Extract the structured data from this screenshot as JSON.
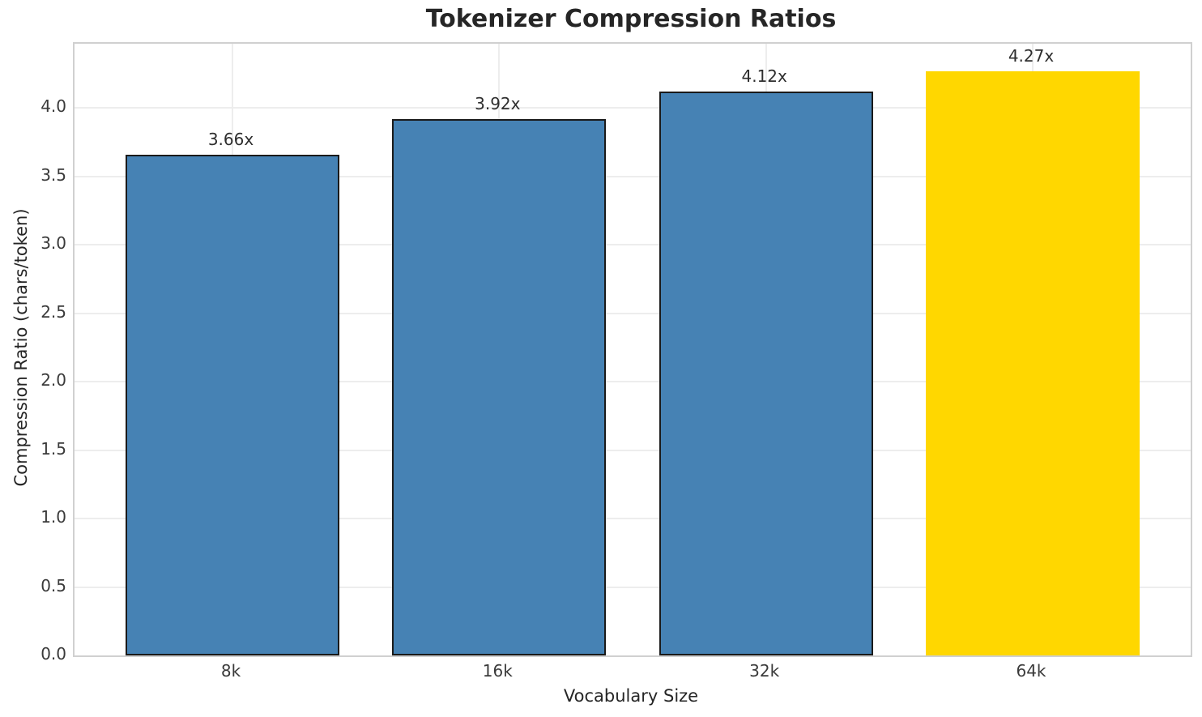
{
  "chart_data": {
    "type": "bar",
    "title": "Tokenizer Compression Ratios",
    "xlabel": "Vocabulary Size",
    "ylabel": "Compression Ratio (chars/token)",
    "categories": [
      "8k",
      "16k",
      "32k",
      "64k"
    ],
    "values": [
      3.66,
      3.92,
      4.12,
      4.27
    ],
    "bar_labels": [
      "3.66x",
      "3.92x",
      "4.12x",
      "4.27x"
    ],
    "bar_colors": [
      "#4682B4",
      "#4682B4",
      "#4682B4",
      "#FFD700"
    ],
    "bar_edge_colors": [
      "#1a1a1a",
      "#1a1a1a",
      "#1a1a1a",
      "none"
    ],
    "ylim": [
      0,
      4.47
    ],
    "yticks": [
      0.0,
      0.5,
      1.0,
      1.5,
      2.0,
      2.5,
      3.0,
      3.5,
      4.0
    ],
    "ytick_labels": [
      "0.0",
      "0.5",
      "1.0",
      "1.5",
      "2.0",
      "2.5",
      "3.0",
      "3.5",
      "4.0"
    ],
    "grid": "both",
    "grid_color": "#ededed",
    "spine_color": "#d0d0d0",
    "background_color": "#ffffff",
    "legend": "none"
  }
}
